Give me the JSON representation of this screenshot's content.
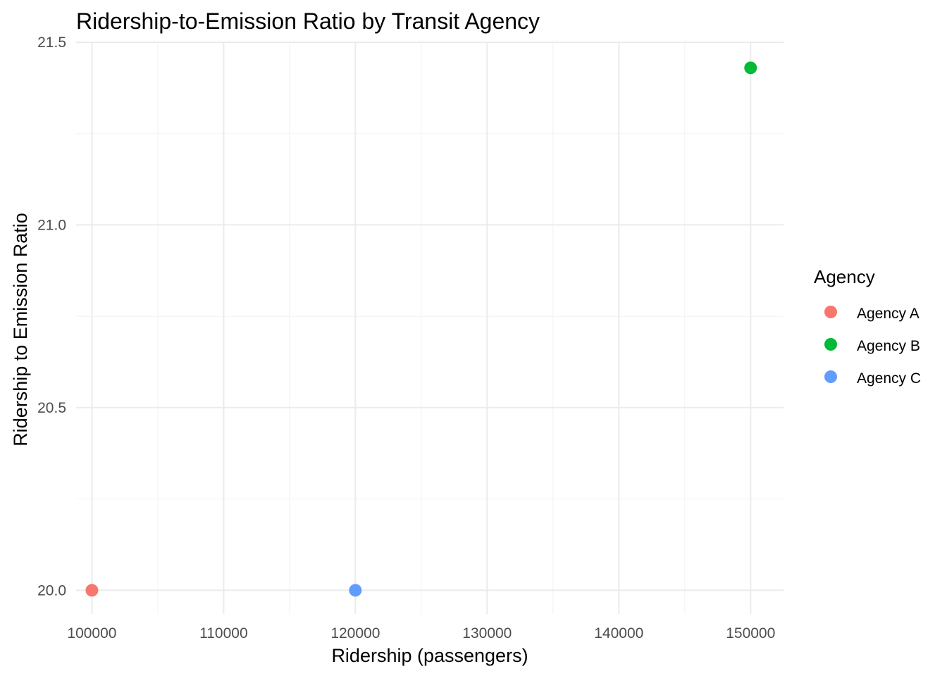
{
  "chart_data": {
    "type": "scatter",
    "title": "Ridership-to-Emission Ratio by Transit Agency",
    "xlabel": "Ridership (passengers)",
    "ylabel": "Ridership to Emission Ratio",
    "xlim": [
      98800,
      152500
    ],
    "ylim": [
      19.935,
      21.5
    ],
    "x_ticks": [
      100000,
      110000,
      120000,
      130000,
      140000,
      150000
    ],
    "x_tick_labels": [
      "100000",
      "110000",
      "120000",
      "130000",
      "140000",
      "150000"
    ],
    "y_ticks": [
      20.0,
      20.5,
      21.0,
      21.5
    ],
    "y_tick_labels": [
      "20.0",
      "20.5",
      "21.0",
      "21.5"
    ],
    "grid": true,
    "legend": {
      "title": "Agency",
      "placement": "right",
      "items": [
        {
          "label": "Agency A",
          "color": "#F8766D"
        },
        {
          "label": "Agency B",
          "color": "#00BA38"
        },
        {
          "label": "Agency C",
          "color": "#619CFF"
        }
      ]
    },
    "points": [
      {
        "agency": "Agency A",
        "x": 100000,
        "y": 20.0,
        "color": "#F8766D"
      },
      {
        "agency": "Agency B",
        "x": 150000,
        "y": 21.43,
        "color": "#00BA38"
      },
      {
        "agency": "Agency C",
        "x": 120000,
        "y": 20.0,
        "color": "#619CFF"
      }
    ]
  }
}
